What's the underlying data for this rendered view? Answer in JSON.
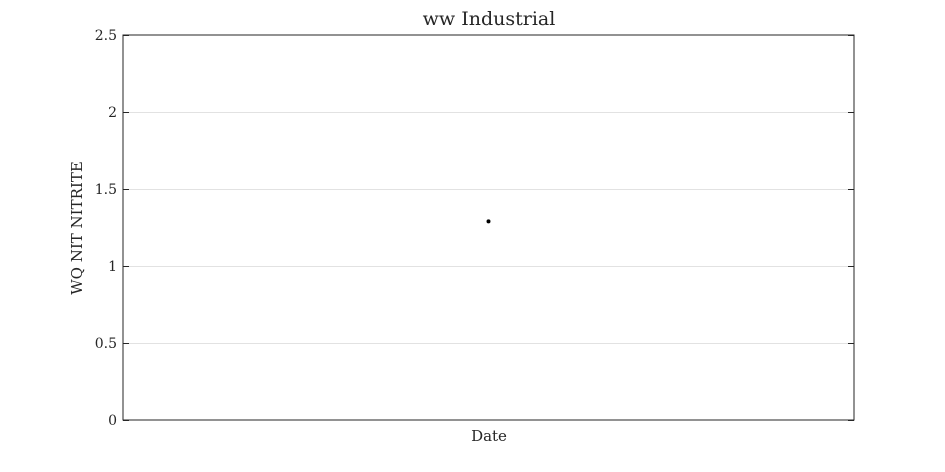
{
  "chart_data": {
    "type": "scatter",
    "title": "ww Industrial",
    "xlabel": "Date",
    "ylabel": "WQ NIT NITRITE",
    "ylim": [
      0,
      2.5
    ],
    "yticks": [
      0,
      0.5,
      1,
      1.5,
      2,
      2.5
    ],
    "ytick_labels": [
      "0",
      "0.5",
      "1",
      "1.5",
      "2",
      "2.5"
    ],
    "xticks": [],
    "grid": "horizontal",
    "series": [
      {
        "points": [
          {
            "x": 0.5,
            "y": 1.29
          }
        ]
      }
    ],
    "marker_color": "#000000"
  }
}
